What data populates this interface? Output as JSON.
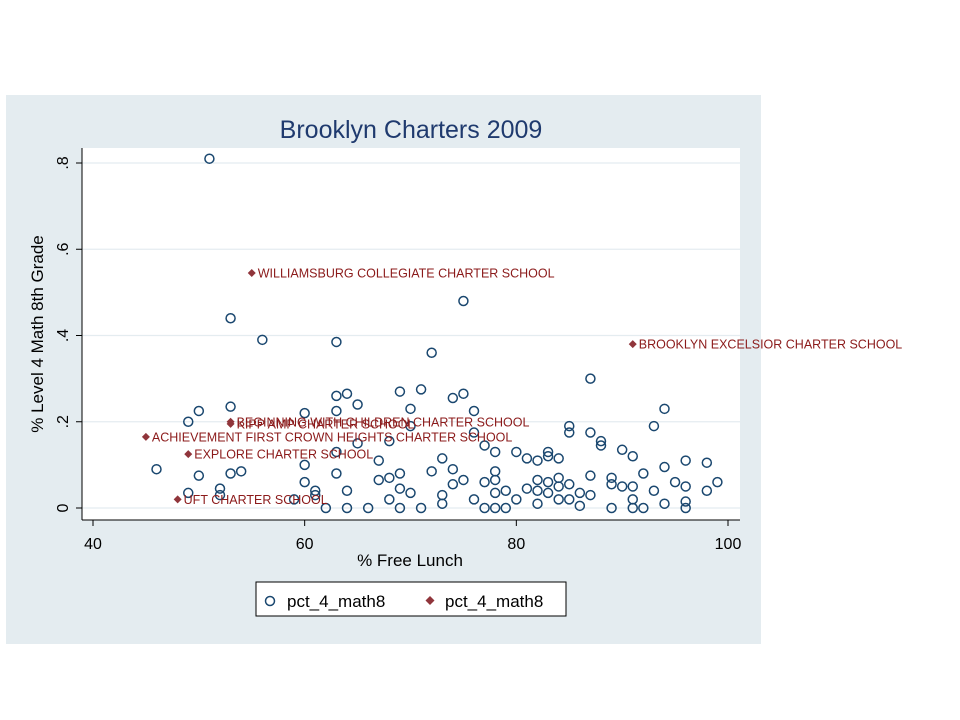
{
  "colors": {
    "graph_region": "#e4ecf0",
    "plot_region": "#ffffff",
    "grid": "#e4ecf0",
    "hollow_marker": "#1a476f",
    "diamond_marker": "#90353b",
    "label_text": "#8b1a1a",
    "title_text": "#1f3a6e"
  },
  "chart_data": {
    "type": "scatter",
    "title": "Brooklyn Charters 2009",
    "xlabel": "% Free Lunch",
    "ylabel": "% Level 4 Math 8th Grade",
    "xlim": [
      40,
      100
    ],
    "ylim": [
      0,
      0.8
    ],
    "xticks": [
      40,
      60,
      80,
      100
    ],
    "xtick_labels": [
      "40",
      "60",
      "80",
      "100"
    ],
    "yticks": [
      0,
      0.2,
      0.4,
      0.6,
      0.8
    ],
    "ytick_labels": [
      "0",
      ".2",
      ".4",
      ".6",
      ".8"
    ],
    "grid": true,
    "legend_position": "bottom",
    "series": [
      {
        "name": "pct_4_math8",
        "marker": "hollow-circle",
        "points": [
          [
            51,
            0.81
          ],
          [
            49,
            0.2
          ],
          [
            50,
            0.225
          ],
          [
            53,
            0.235
          ],
          [
            53,
            0.44
          ],
          [
            56,
            0.39
          ],
          [
            46,
            0.09
          ],
          [
            49,
            0.035
          ],
          [
            50,
            0.075
          ],
          [
            52,
            0.045
          ],
          [
            52,
            0.03
          ],
          [
            53,
            0.08
          ],
          [
            54,
            0.085
          ],
          [
            59,
            0.02
          ],
          [
            60,
            0.22
          ],
          [
            60,
            0.1
          ],
          [
            60,
            0.06
          ],
          [
            61,
            0.04
          ],
          [
            61,
            0.03
          ],
          [
            62,
            0.0
          ],
          [
            63,
            0.385
          ],
          [
            63,
            0.26
          ],
          [
            63,
            0.225
          ],
          [
            63,
            0.13
          ],
          [
            63,
            0.08
          ],
          [
            64,
            0.265
          ],
          [
            64,
            0.04
          ],
          [
            64,
            0.0
          ],
          [
            65,
            0.24
          ],
          [
            65,
            0.15
          ],
          [
            66,
            0.0
          ],
          [
            67,
            0.11
          ],
          [
            67,
            0.065
          ],
          [
            68,
            0.07
          ],
          [
            68,
            0.155
          ],
          [
            68,
            0.02
          ],
          [
            69,
            0.27
          ],
          [
            69,
            0.08
          ],
          [
            69,
            0.045
          ],
          [
            69,
            0.0
          ],
          [
            70,
            0.23
          ],
          [
            70,
            0.19
          ],
          [
            70,
            0.035
          ],
          [
            71,
            0.275
          ],
          [
            71,
            0.0
          ],
          [
            72,
            0.36
          ],
          [
            72,
            0.085
          ],
          [
            73,
            0.115
          ],
          [
            73,
            0.03
          ],
          [
            73,
            0.01
          ],
          [
            74,
            0.255
          ],
          [
            74,
            0.09
          ],
          [
            74,
            0.055
          ],
          [
            75,
            0.48
          ],
          [
            75,
            0.265
          ],
          [
            75,
            0.065
          ],
          [
            76,
            0.225
          ],
          [
            76,
            0.175
          ],
          [
            76,
            0.02
          ],
          [
            77,
            0.145
          ],
          [
            77,
            0.06
          ],
          [
            77,
            0.0
          ],
          [
            78,
            0.13
          ],
          [
            78,
            0.085
          ],
          [
            78,
            0.065
          ],
          [
            78,
            0.035
          ],
          [
            78,
            0.0
          ],
          [
            79,
            0.04
          ],
          [
            79,
            0.0
          ],
          [
            80,
            0.13
          ],
          [
            80,
            0.02
          ],
          [
            81,
            0.115
          ],
          [
            81,
            0.045
          ],
          [
            82,
            0.11
          ],
          [
            82,
            0.065
          ],
          [
            82,
            0.04
          ],
          [
            82,
            0.01
          ],
          [
            83,
            0.13
          ],
          [
            83,
            0.12
          ],
          [
            83,
            0.06
          ],
          [
            83,
            0.035
          ],
          [
            84,
            0.115
          ],
          [
            84,
            0.07
          ],
          [
            84,
            0.05
          ],
          [
            84,
            0.02
          ],
          [
            85,
            0.19
          ],
          [
            85,
            0.175
          ],
          [
            85,
            0.055
          ],
          [
            85,
            0.02
          ],
          [
            86,
            0.035
          ],
          [
            86,
            0.005
          ],
          [
            87,
            0.3
          ],
          [
            87,
            0.175
          ],
          [
            87,
            0.075
          ],
          [
            87,
            0.03
          ],
          [
            88,
            0.155
          ],
          [
            88,
            0.145
          ],
          [
            89,
            0.07
          ],
          [
            89,
            0.055
          ],
          [
            89,
            0.0
          ],
          [
            90,
            0.135
          ],
          [
            90,
            0.05
          ],
          [
            91,
            0.12
          ],
          [
            91,
            0.05
          ],
          [
            91,
            0.02
          ],
          [
            91,
            0.0
          ],
          [
            92,
            0.08
          ],
          [
            92,
            0.0
          ],
          [
            93,
            0.19
          ],
          [
            93,
            0.04
          ],
          [
            94,
            0.23
          ],
          [
            94,
            0.095
          ],
          [
            94,
            0.01
          ],
          [
            95,
            0.06
          ],
          [
            96,
            0.11
          ],
          [
            96,
            0.05
          ],
          [
            96,
            0.015
          ],
          [
            96,
            0.0
          ],
          [
            98,
            0.105
          ],
          [
            98,
            0.04
          ],
          [
            99,
            0.06
          ]
        ]
      },
      {
        "name": "pct_4_math8",
        "marker": "filled-diamond",
        "points": [
          {
            "x": 55,
            "y": 0.545,
            "label": "WILLIAMSBURG COLLEGIATE CHARTER SCHOOL"
          },
          {
            "x": 91,
            "y": 0.38,
            "label": "BROOKLYN EXCELSIOR CHARTER SCHOOL"
          },
          {
            "x": 53,
            "y": 0.2,
            "label": "BEGINNING WITH CHILDREN CHARTER SCHOOL"
          },
          {
            "x": 53,
            "y": 0.195,
            "label": "KIPP AMP CHARTER SCHOOL"
          },
          {
            "x": 45,
            "y": 0.165,
            "label": "ACHIEVEMENT FIRST CROWN HEIGHTS CHARTER SCHOOL"
          },
          {
            "x": 49,
            "y": 0.125,
            "label": "EXPLORE CHARTER SCHOOL"
          },
          {
            "x": 48,
            "y": 0.02,
            "label": "UFT CHARTER SCHOOL"
          }
        ]
      }
    ],
    "legend": [
      {
        "marker": "hollow-circle",
        "label": "pct_4_math8"
      },
      {
        "marker": "filled-diamond",
        "label": "pct_4_math8"
      }
    ]
  }
}
